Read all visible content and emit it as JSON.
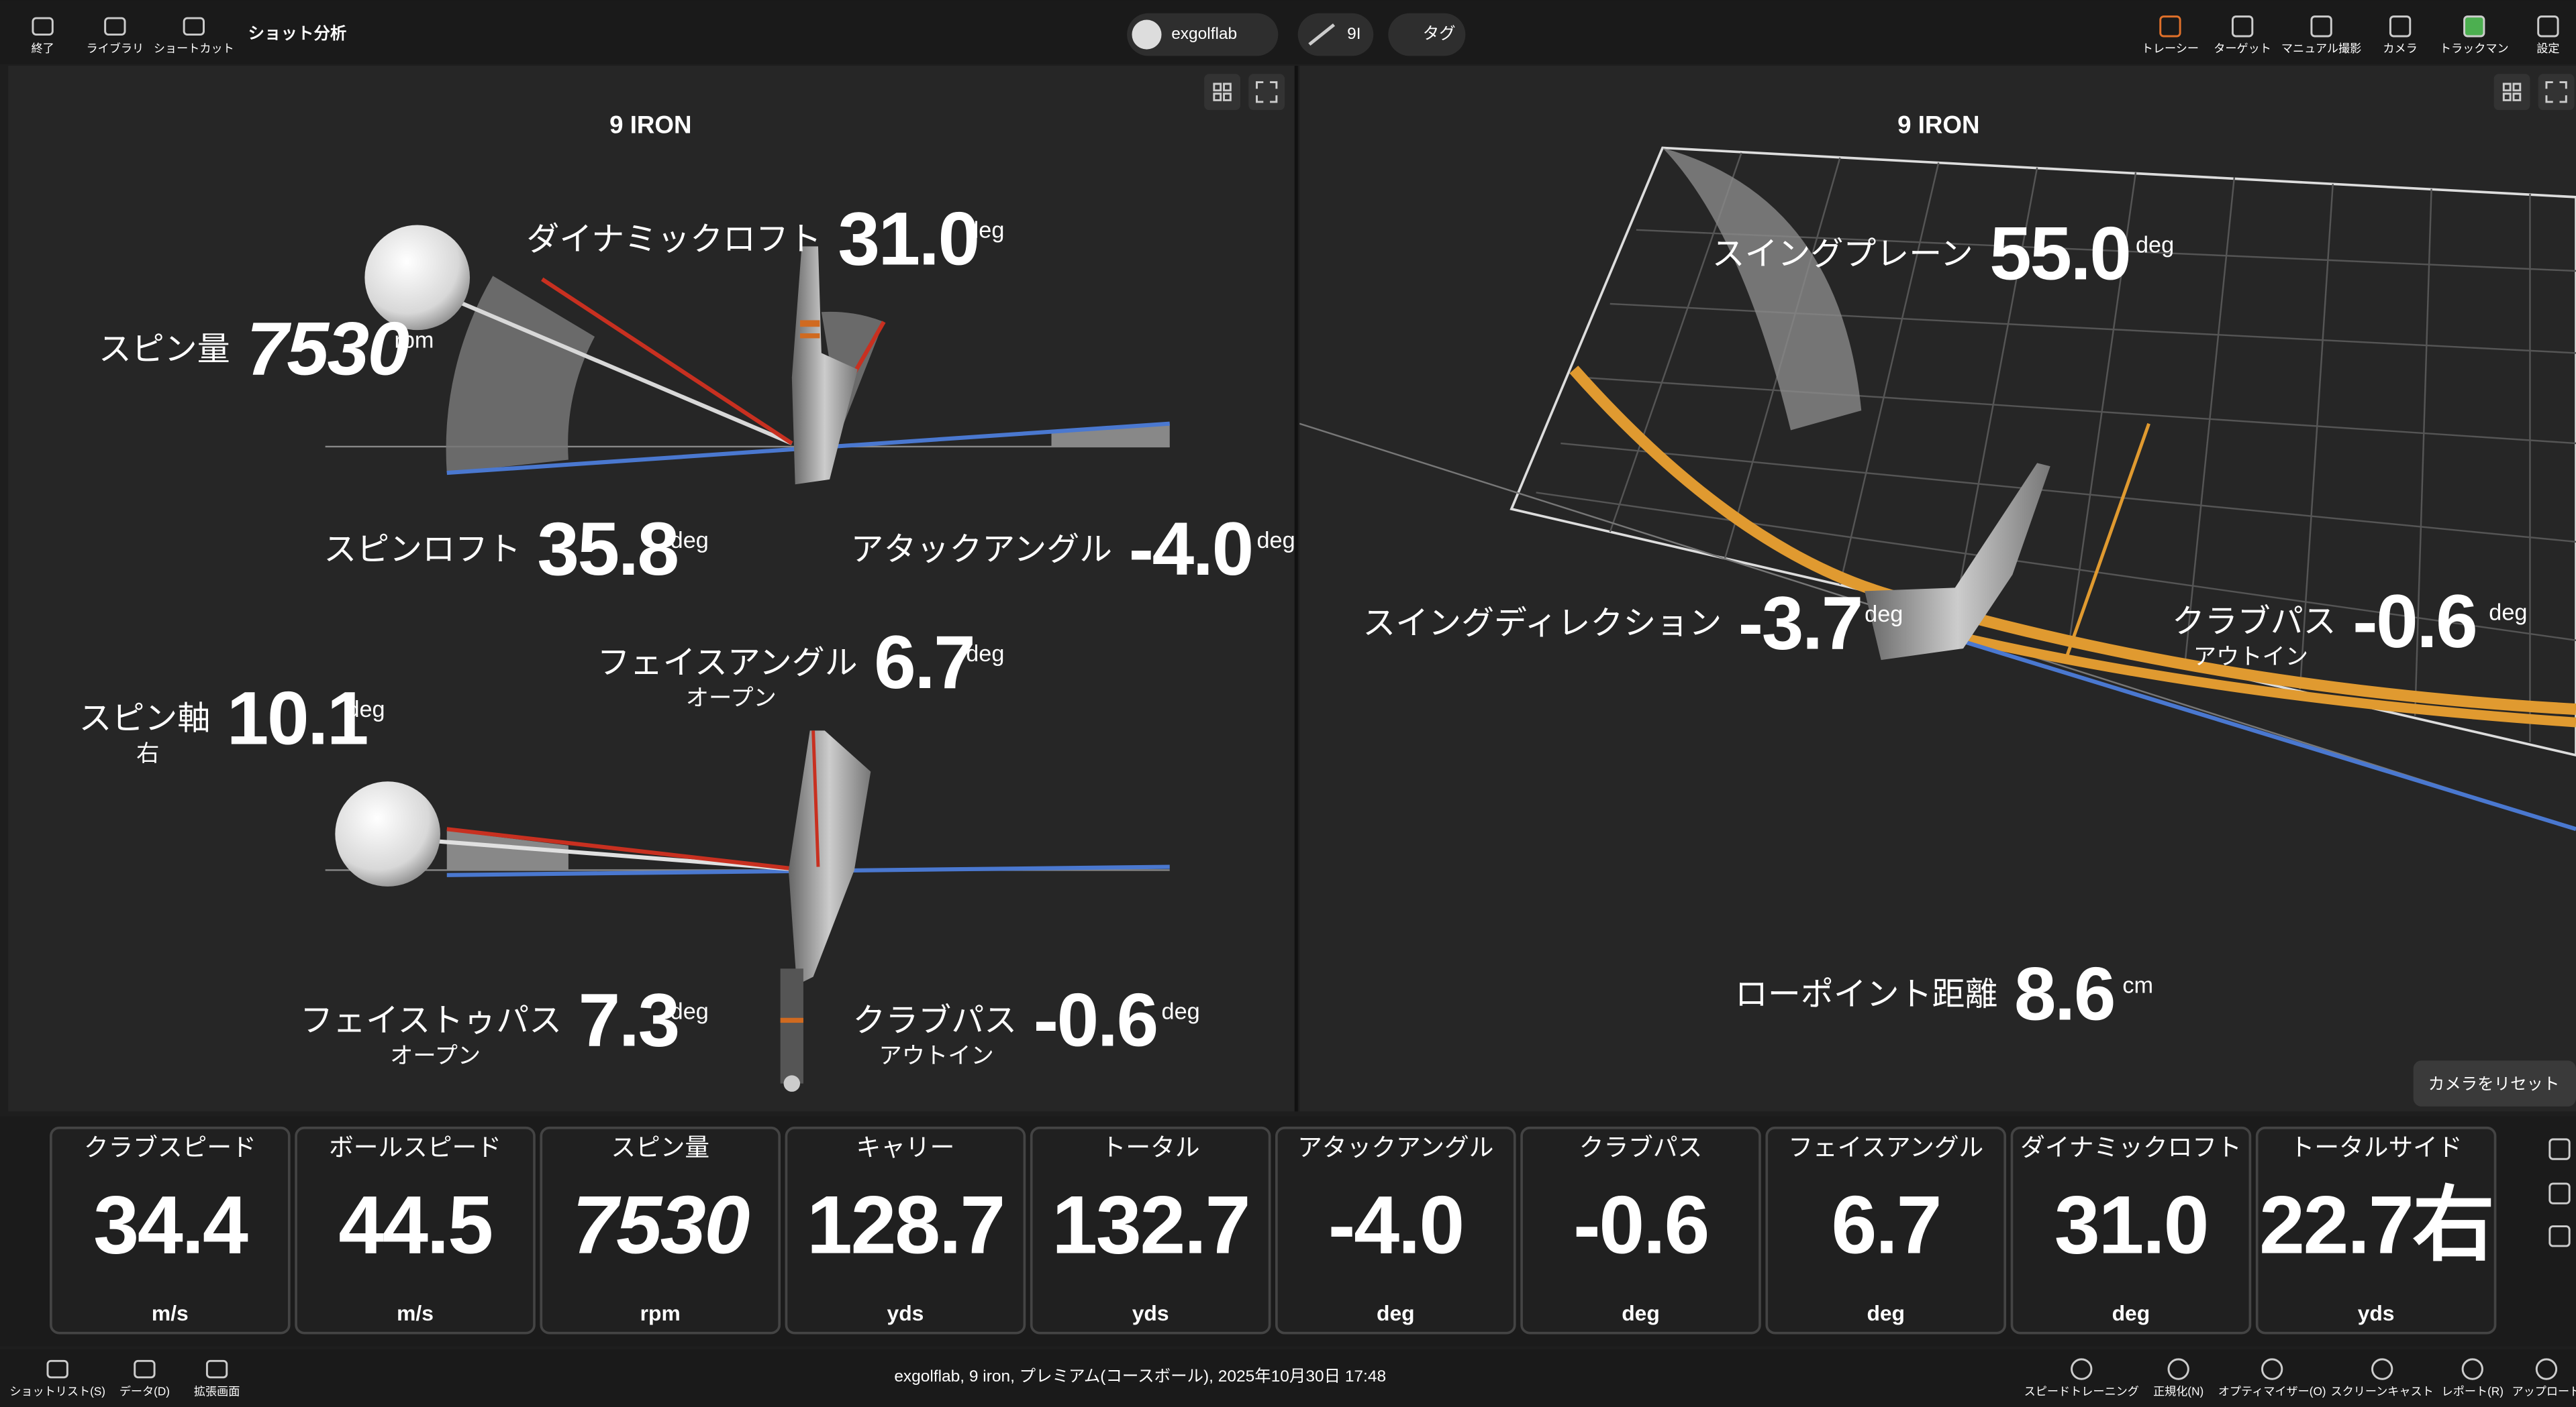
{
  "toolbar": {
    "left": [
      "終了",
      "ライブラリ",
      "ショートカット"
    ],
    "title": "ショット分析",
    "user": "exgolflab",
    "club": "9I",
    "tag": "タグ",
    "right": [
      "トレーシー",
      "ターゲット",
      "マニュアル撮影",
      "カメラ",
      "トラックマン",
      "設定"
    ]
  },
  "left_panel": {
    "title": "9 IRON",
    "metrics": [
      {
        "label": "ダイナミックロフト",
        "value": "31.0",
        "unit": "deg"
      },
      {
        "label": "スピン量",
        "value": "7530",
        "unit": "rpm"
      },
      {
        "label": "スピンロフト",
        "value": "35.8",
        "unit": "deg"
      },
      {
        "label": "アタックアングル",
        "value": "-4.0",
        "unit": "deg"
      },
      {
        "label": "フェイスアングル",
        "sub": "オープン",
        "value": "6.7",
        "unit": "deg"
      },
      {
        "label": "スピン軸",
        "sub": "右",
        "value": "10.1",
        "unit": "deg"
      },
      {
        "label": "フェイストゥパス",
        "sub": "オープン",
        "value": "7.3",
        "unit": "deg"
      },
      {
        "label": "クラブパス",
        "sub": "アウトイン",
        "value": "-0.6",
        "unit": "deg"
      }
    ]
  },
  "right_panel": {
    "title": "9 IRON",
    "metrics": [
      {
        "label": "スイングプレーン",
        "value": "55.0",
        "unit": "deg"
      },
      {
        "label": "スイングディレクション",
        "value": "-3.7",
        "unit": "deg"
      },
      {
        "label": "クラブパス",
        "sub": "アウトイン",
        "value": "-0.6",
        "unit": "deg"
      },
      {
        "label": "ローポイント距離",
        "value": "8.6",
        "unit": "cm"
      }
    ],
    "reset_camera": "カメラをリセット"
  },
  "tiles": [
    {
      "label": "クラブスピード",
      "value": "34.4",
      "unit": "m/s"
    },
    {
      "label": "ボールスピード",
      "value": "44.5",
      "unit": "m/s"
    },
    {
      "label": "スピン量",
      "value": "7530",
      "unit": "rpm"
    },
    {
      "label": "キャリー",
      "value": "128.7",
      "unit": "yds"
    },
    {
      "label": "トータル",
      "value": "132.7",
      "unit": "yds"
    },
    {
      "label": "アタックアングル",
      "value": "-4.0",
      "unit": "deg"
    },
    {
      "label": "クラブパス",
      "value": "-0.6",
      "unit": "deg"
    },
    {
      "label": "フェイスアングル",
      "value": "6.7",
      "unit": "deg"
    },
    {
      "label": "ダイナミックロフト",
      "value": "31.0",
      "unit": "deg"
    },
    {
      "label": "トータルサイド",
      "value": "22.7右",
      "unit": "yds"
    }
  ],
  "footer": {
    "left": [
      "ショットリスト(S)",
      "データ(D)",
      "拡張画面"
    ],
    "status": "exgolflab, 9 iron, プレミアム(コースボール), 2025年10月30日 17:48",
    "right": [
      "スピードトレーニング",
      "正規化(N)",
      "オプティマイザー(O)",
      "スクリーンキャスト",
      "レポート(R)",
      "アップロード"
    ]
  }
}
